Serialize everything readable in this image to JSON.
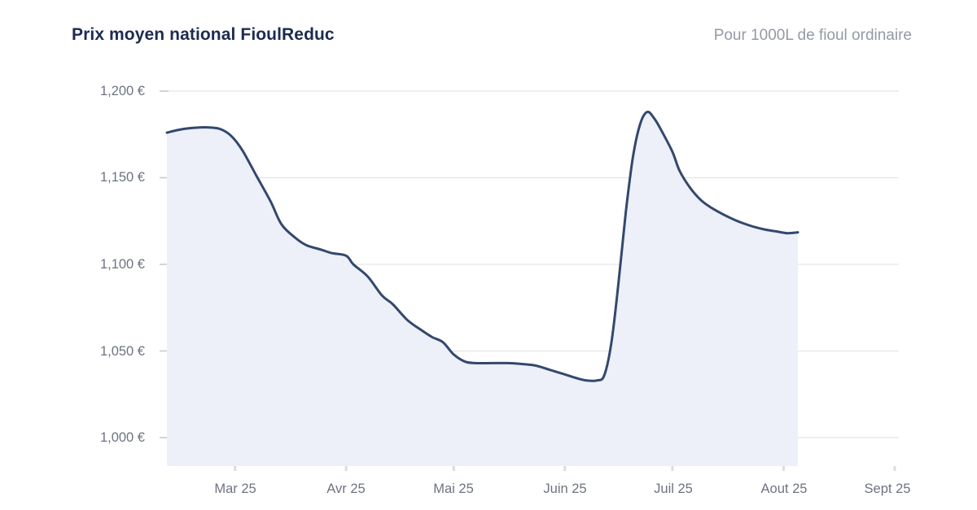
{
  "header": {
    "title": "Prix moyen national FioulReduc",
    "subtitle": "Pour 1000L de fioul ordinaire"
  },
  "chart_data": {
    "type": "area",
    "title": "Prix moyen national FioulReduc",
    "subtitle": "Pour 1000L de fioul ordinaire",
    "unit": "€ pour 1000L",
    "grid": "horizontal",
    "legend": "none",
    "x_domain": [
      "2025-02-10",
      "2025-08-05"
    ],
    "y_domain": [
      1000,
      1200
    ],
    "y_ticks": [
      1000,
      1050,
      1100,
      1150,
      1200
    ],
    "y_tick_labels_top_to_bottom": [
      "1,200 €",
      "1,150 €",
      "1,100 €",
      "1,050 €",
      "1,000 €"
    ],
    "x_ticks": [
      "2025-03-01",
      "2025-04-01",
      "2025-05-01",
      "2025-06-01",
      "2025-07-01",
      "2025-08-01",
      "2025-09-01"
    ],
    "x_tick_labels": [
      "Mar 25",
      "Avr 25",
      "Mai 25",
      "Juin 25",
      "Juil 25",
      "Aout 25",
      "Sept 25"
    ],
    "colors": {
      "line": "#33486e",
      "fill": "#edf0f8",
      "grid": "#e4e5e9",
      "y_tick": "#ccd0d9",
      "x_tick": "#d9dce4",
      "axis_text": "#6e7380",
      "title_text": "#1c2b50",
      "subtitle_text": "#9599a6"
    },
    "series": [
      {
        "points": [
          [
            "2025-02-10",
            1176
          ],
          [
            "2025-02-13",
            1177.5
          ],
          [
            "2025-02-16",
            1178.5
          ],
          [
            "2025-02-19",
            1179
          ],
          [
            "2025-02-22",
            1179
          ],
          [
            "2025-02-25",
            1178
          ],
          [
            "2025-02-28",
            1174
          ],
          [
            "2025-03-03",
            1166
          ],
          [
            "2025-03-07",
            1151
          ],
          [
            "2025-03-11",
            1136
          ],
          [
            "2025-03-14",
            1123
          ],
          [
            "2025-03-18",
            1115
          ],
          [
            "2025-03-21",
            1111
          ],
          [
            "2025-03-25",
            1108.5
          ],
          [
            "2025-03-28",
            1106.5
          ],
          [
            "2025-04-01",
            1105
          ],
          [
            "2025-04-03",
            1100
          ],
          [
            "2025-04-07",
            1093
          ],
          [
            "2025-04-11",
            1082
          ],
          [
            "2025-04-14",
            1077
          ],
          [
            "2025-04-18",
            1068
          ],
          [
            "2025-04-22",
            1062
          ],
          [
            "2025-04-25",
            1058
          ],
          [
            "2025-04-28",
            1055
          ],
          [
            "2025-05-01",
            1048
          ],
          [
            "2025-05-04",
            1044
          ],
          [
            "2025-05-07",
            1043
          ],
          [
            "2025-05-12",
            1043
          ],
          [
            "2025-05-16",
            1043
          ],
          [
            "2025-05-20",
            1042.5
          ],
          [
            "2025-05-24",
            1041.5
          ],
          [
            "2025-05-28",
            1039
          ],
          [
            "2025-06-01",
            1036.5
          ],
          [
            "2025-06-04",
            1034.5
          ],
          [
            "2025-06-07",
            1033
          ],
          [
            "2025-06-10",
            1033
          ],
          [
            "2025-06-12",
            1036
          ],
          [
            "2025-06-14",
            1055
          ],
          [
            "2025-06-16",
            1090
          ],
          [
            "2025-06-18",
            1130
          ],
          [
            "2025-06-20",
            1162
          ],
          [
            "2025-06-22",
            1181
          ],
          [
            "2025-06-24",
            1188
          ],
          [
            "2025-06-26",
            1184
          ],
          [
            "2025-06-28",
            1177
          ],
          [
            "2025-07-01",
            1165
          ],
          [
            "2025-07-03",
            1154
          ],
          [
            "2025-07-06",
            1144
          ],
          [
            "2025-07-09",
            1137
          ],
          [
            "2025-07-12",
            1132.5
          ],
          [
            "2025-07-15",
            1129
          ],
          [
            "2025-07-18",
            1126
          ],
          [
            "2025-07-21",
            1123.5
          ],
          [
            "2025-07-24",
            1121.5
          ],
          [
            "2025-07-27",
            1120
          ],
          [
            "2025-07-30",
            1119
          ],
          [
            "2025-08-02",
            1118
          ],
          [
            "2025-08-05",
            1118.5
          ]
        ]
      }
    ]
  }
}
